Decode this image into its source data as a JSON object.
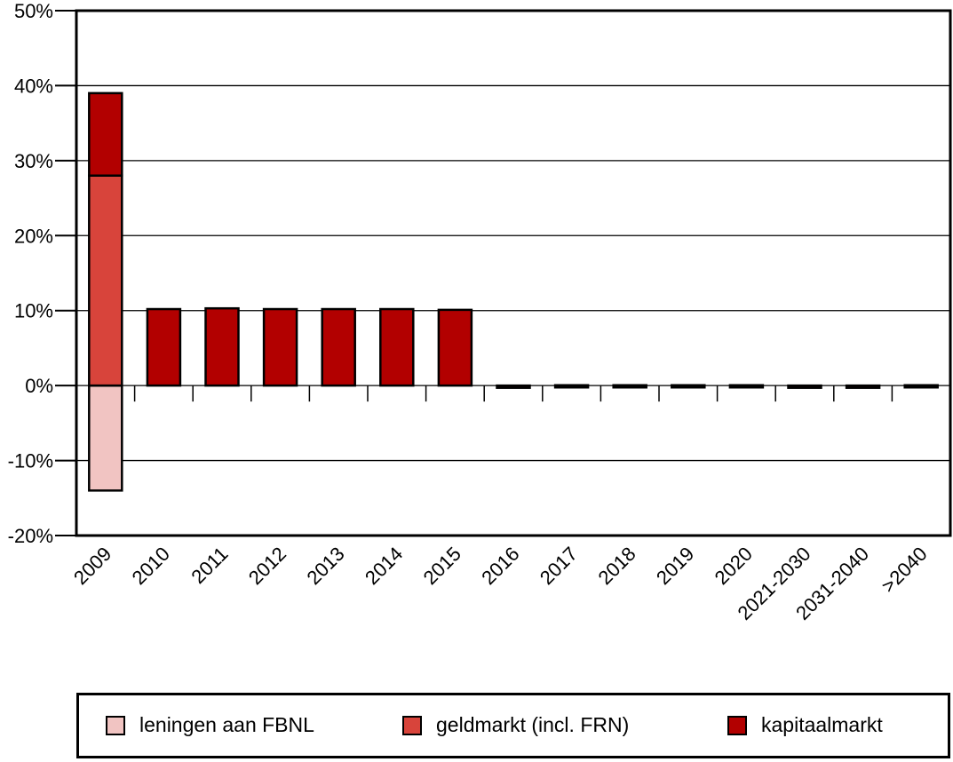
{
  "chart_data": {
    "type": "bar",
    "stacked": true,
    "categories": [
      "2009",
      "2010",
      "2011",
      "2012",
      "2013",
      "2014",
      "2015",
      "2016",
      "2017",
      "2018",
      "2019",
      "2020",
      "2021-2030",
      "2031-2040",
      ">2040"
    ],
    "series": [
      {
        "name": "leningen aan FBNL",
        "color": "#f1c4c2",
        "values": [
          -14,
          0,
          0,
          0,
          0,
          0,
          0,
          0,
          0,
          0,
          0,
          0,
          0,
          0,
          0
        ]
      },
      {
        "name": "geldmarkt (incl. FRN)",
        "color": "#d8443b",
        "values": [
          28,
          0,
          0,
          0,
          0,
          0,
          0,
          0,
          0,
          0,
          0,
          0,
          0,
          0,
          0
        ]
      },
      {
        "name": "kapitaalmarkt",
        "color": "#b20000",
        "values": [
          11,
          10.2,
          10.3,
          10.2,
          10.2,
          10.2,
          10.1,
          -0.3,
          -0.2,
          -0.2,
          -0.2,
          -0.2,
          -0.3,
          -0.3,
          -0.2
        ]
      }
    ],
    "yticks": [
      "50%",
      "40%",
      "30%",
      "20%",
      "10%",
      "0%",
      "-10%",
      "-20%"
    ],
    "ylim": [
      -20,
      50
    ],
    "grid": true,
    "legend_position": "bottom"
  }
}
